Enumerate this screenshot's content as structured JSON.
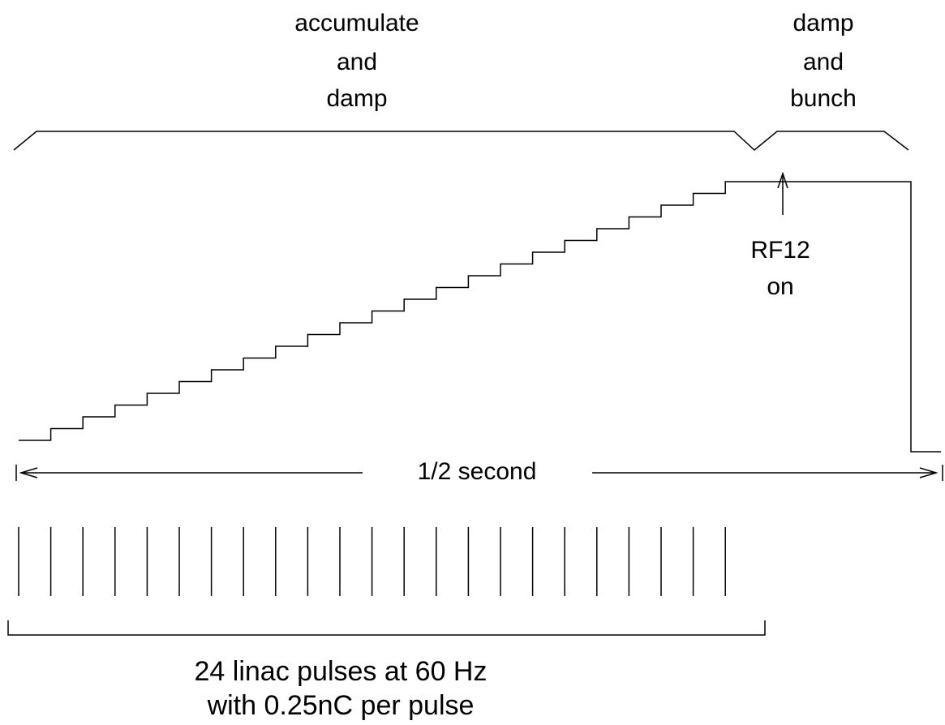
{
  "accumulate_phase": [
    "accumulate",
    "and",
    "damp"
  ],
  "bunch_phase": [
    "damp",
    "and",
    "bunch"
  ],
  "rf_marker": [
    "RF12",
    "on"
  ],
  "duration": "1/2 second",
  "pulses": [
    "24 linac pulses at 60 Hz",
    "with 0.25nC per pulse"
  ]
}
